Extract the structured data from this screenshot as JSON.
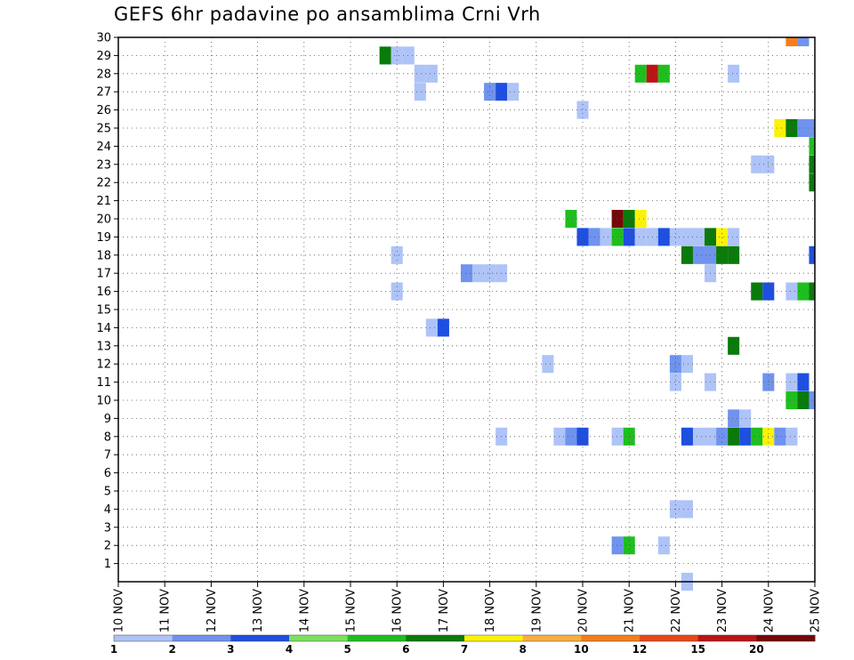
{
  "chart_data": {
    "type": "heatmap",
    "title": "GEFS 6hr padavine po ansamblima Crni Vrh",
    "xlabel": "",
    "ylabel": "",
    "x_tick_labels": [
      "10 NOV",
      "11 NOV",
      "12 NOV",
      "13 NOV",
      "14 NOV",
      "15 NOV",
      "16 NOV",
      "17 NOV",
      "18 NOV",
      "19 NOV",
      "20 NOV",
      "21 NOV",
      "22 NOV",
      "23 NOV",
      "24 NOV",
      "25 NOV"
    ],
    "xlim": [
      0,
      15
    ],
    "ylim": [
      0,
      30
    ],
    "y_ticks": [
      1,
      2,
      3,
      4,
      5,
      6,
      7,
      8,
      9,
      10,
      11,
      12,
      13,
      14,
      15,
      16,
      17,
      18,
      19,
      20,
      21,
      22,
      23,
      24,
      25,
      26,
      27,
      28,
      29,
      30
    ],
    "grid": true,
    "x_unit": "days from 10 NOV, 6-hour steps",
    "colorbar": {
      "labels": [
        "1",
        "2",
        "3",
        "4",
        "5",
        "6",
        "7",
        "8",
        "10",
        "12",
        "15",
        "20"
      ],
      "colors": [
        "#aec3f7",
        "#6f93ee",
        "#1e4fe0",
        "#7ee05e",
        "#1fbe1f",
        "#0a7a0a",
        "#fbf20a",
        "#f8ae40",
        "#f47e1b",
        "#ea4618",
        "#bc1414",
        "#740808"
      ]
    },
    "cells": [
      {
        "x": 14.5,
        "y": 30,
        "v": 10
      },
      {
        "x": 14.75,
        "y": 30,
        "v": 2
      },
      {
        "x": 15.25,
        "y": 30,
        "v": 1
      },
      {
        "x": 5.75,
        "y": 29,
        "v": 6
      },
      {
        "x": 6,
        "y": 29,
        "v": 1
      },
      {
        "x": 6.25,
        "y": 29,
        "v": 1
      },
      {
        "x": 6.5,
        "y": 28,
        "v": 1
      },
      {
        "x": 6.75,
        "y": 28,
        "v": 1
      },
      {
        "x": 11.25,
        "y": 28,
        "v": 5
      },
      {
        "x": 11.5,
        "y": 28,
        "v": 15
      },
      {
        "x": 11.75,
        "y": 28,
        "v": 5
      },
      {
        "x": 13.25,
        "y": 28,
        "v": 1
      },
      {
        "x": 6.5,
        "y": 27,
        "v": 1
      },
      {
        "x": 8,
        "y": 27,
        "v": 2
      },
      {
        "x": 8.25,
        "y": 27,
        "v": 3
      },
      {
        "x": 8.5,
        "y": 27,
        "v": 1
      },
      {
        "x": 10,
        "y": 26,
        "v": 1
      },
      {
        "x": 14.25,
        "y": 25,
        "v": 7
      },
      {
        "x": 14.5,
        "y": 25,
        "v": 6
      },
      {
        "x": 14.75,
        "y": 25,
        "v": 2
      },
      {
        "x": 15,
        "y": 25,
        "v": 2
      },
      {
        "x": 15,
        "y": 24,
        "v": 5
      },
      {
        "x": 13.75,
        "y": 23,
        "v": 1
      },
      {
        "x": 14,
        "y": 23,
        "v": 1
      },
      {
        "x": 15,
        "y": 23,
        "v": 6
      },
      {
        "x": 15,
        "y": 22,
        "v": 6
      },
      {
        "x": 9.75,
        "y": 20,
        "v": 5
      },
      {
        "x": 10.75,
        "y": 20,
        "v": 20
      },
      {
        "x": 11,
        "y": 20,
        "v": 6
      },
      {
        "x": 11.25,
        "y": 20,
        "v": 7
      },
      {
        "x": 10,
        "y": 19,
        "v": 3
      },
      {
        "x": 10.25,
        "y": 19,
        "v": 2
      },
      {
        "x": 10.5,
        "y": 19,
        "v": 1
      },
      {
        "x": 10.75,
        "y": 19,
        "v": 5
      },
      {
        "x": 11,
        "y": 19,
        "v": 3
      },
      {
        "x": 11.25,
        "y": 19,
        "v": 1
      },
      {
        "x": 11.5,
        "y": 19,
        "v": 1
      },
      {
        "x": 11.75,
        "y": 19,
        "v": 3
      },
      {
        "x": 12,
        "y": 19,
        "v": 1
      },
      {
        "x": 12.25,
        "y": 19,
        "v": 1
      },
      {
        "x": 12.5,
        "y": 19,
        "v": 1
      },
      {
        "x": 12.75,
        "y": 19,
        "v": 6
      },
      {
        "x": 13,
        "y": 19,
        "v": 7
      },
      {
        "x": 13.25,
        "y": 19,
        "v": 1
      },
      {
        "x": 6,
        "y": 18,
        "v": 1
      },
      {
        "x": 12.25,
        "y": 18,
        "v": 6
      },
      {
        "x": 12.5,
        "y": 18,
        "v": 2
      },
      {
        "x": 12.75,
        "y": 18,
        "v": 2
      },
      {
        "x": 13,
        "y": 18,
        "v": 6
      },
      {
        "x": 13.25,
        "y": 18,
        "v": 6
      },
      {
        "x": 15,
        "y": 18,
        "v": 3
      },
      {
        "x": 7.5,
        "y": 17,
        "v": 2
      },
      {
        "x": 7.75,
        "y": 17,
        "v": 1
      },
      {
        "x": 8,
        "y": 17,
        "v": 1
      },
      {
        "x": 8.25,
        "y": 17,
        "v": 1
      },
      {
        "x": 12.75,
        "y": 17,
        "v": 1
      },
      {
        "x": 6,
        "y": 16,
        "v": 1
      },
      {
        "x": 13.75,
        "y": 16,
        "v": 6
      },
      {
        "x": 14,
        "y": 16,
        "v": 3
      },
      {
        "x": 14.5,
        "y": 16,
        "v": 1
      },
      {
        "x": 14.75,
        "y": 16,
        "v": 5
      },
      {
        "x": 15,
        "y": 16,
        "v": 6
      },
      {
        "x": 6.75,
        "y": 14,
        "v": 1
      },
      {
        "x": 7,
        "y": 14,
        "v": 3
      },
      {
        "x": 13.25,
        "y": 13,
        "v": 6
      },
      {
        "x": 9.25,
        "y": 12,
        "v": 1
      },
      {
        "x": 12,
        "y": 12,
        "v": 2
      },
      {
        "x": 12.25,
        "y": 12,
        "v": 1
      },
      {
        "x": 12,
        "y": 11,
        "v": 1
      },
      {
        "x": 12.75,
        "y": 11,
        "v": 1
      },
      {
        "x": 14,
        "y": 11,
        "v": 2
      },
      {
        "x": 14.5,
        "y": 11,
        "v": 1
      },
      {
        "x": 14.75,
        "y": 11,
        "v": 3
      },
      {
        "x": 14.5,
        "y": 10,
        "v": 5
      },
      {
        "x": 14.75,
        "y": 10,
        "v": 6
      },
      {
        "x": 15,
        "y": 10,
        "v": 2
      },
      {
        "x": 13.25,
        "y": 9,
        "v": 2
      },
      {
        "x": 13.5,
        "y": 9,
        "v": 1
      },
      {
        "x": 8.25,
        "y": 8,
        "v": 1
      },
      {
        "x": 9.5,
        "y": 8,
        "v": 1
      },
      {
        "x": 9.75,
        "y": 8,
        "v": 2
      },
      {
        "x": 10,
        "y": 8,
        "v": 3
      },
      {
        "x": 10.75,
        "y": 8,
        "v": 1
      },
      {
        "x": 11,
        "y": 8,
        "v": 5
      },
      {
        "x": 12.25,
        "y": 8,
        "v": 3
      },
      {
        "x": 12.5,
        "y": 8,
        "v": 1
      },
      {
        "x": 12.75,
        "y": 8,
        "v": 1
      },
      {
        "x": 13,
        "y": 8,
        "v": 2
      },
      {
        "x": 13.25,
        "y": 8,
        "v": 6
      },
      {
        "x": 13.5,
        "y": 8,
        "v": 3
      },
      {
        "x": 13.75,
        "y": 8,
        "v": 5
      },
      {
        "x": 14,
        "y": 8,
        "v": 7
      },
      {
        "x": 14.25,
        "y": 8,
        "v": 2
      },
      {
        "x": 14.5,
        "y": 8,
        "v": 1
      },
      {
        "x": 12,
        "y": 4,
        "v": 1
      },
      {
        "x": 12.25,
        "y": 4,
        "v": 1
      },
      {
        "x": 10.75,
        "y": 2,
        "v": 2
      },
      {
        "x": 11,
        "y": 2,
        "v": 5
      },
      {
        "x": 11.75,
        "y": 2,
        "v": 1
      },
      {
        "x": 12.25,
        "y": 0,
        "v": 1
      }
    ]
  }
}
